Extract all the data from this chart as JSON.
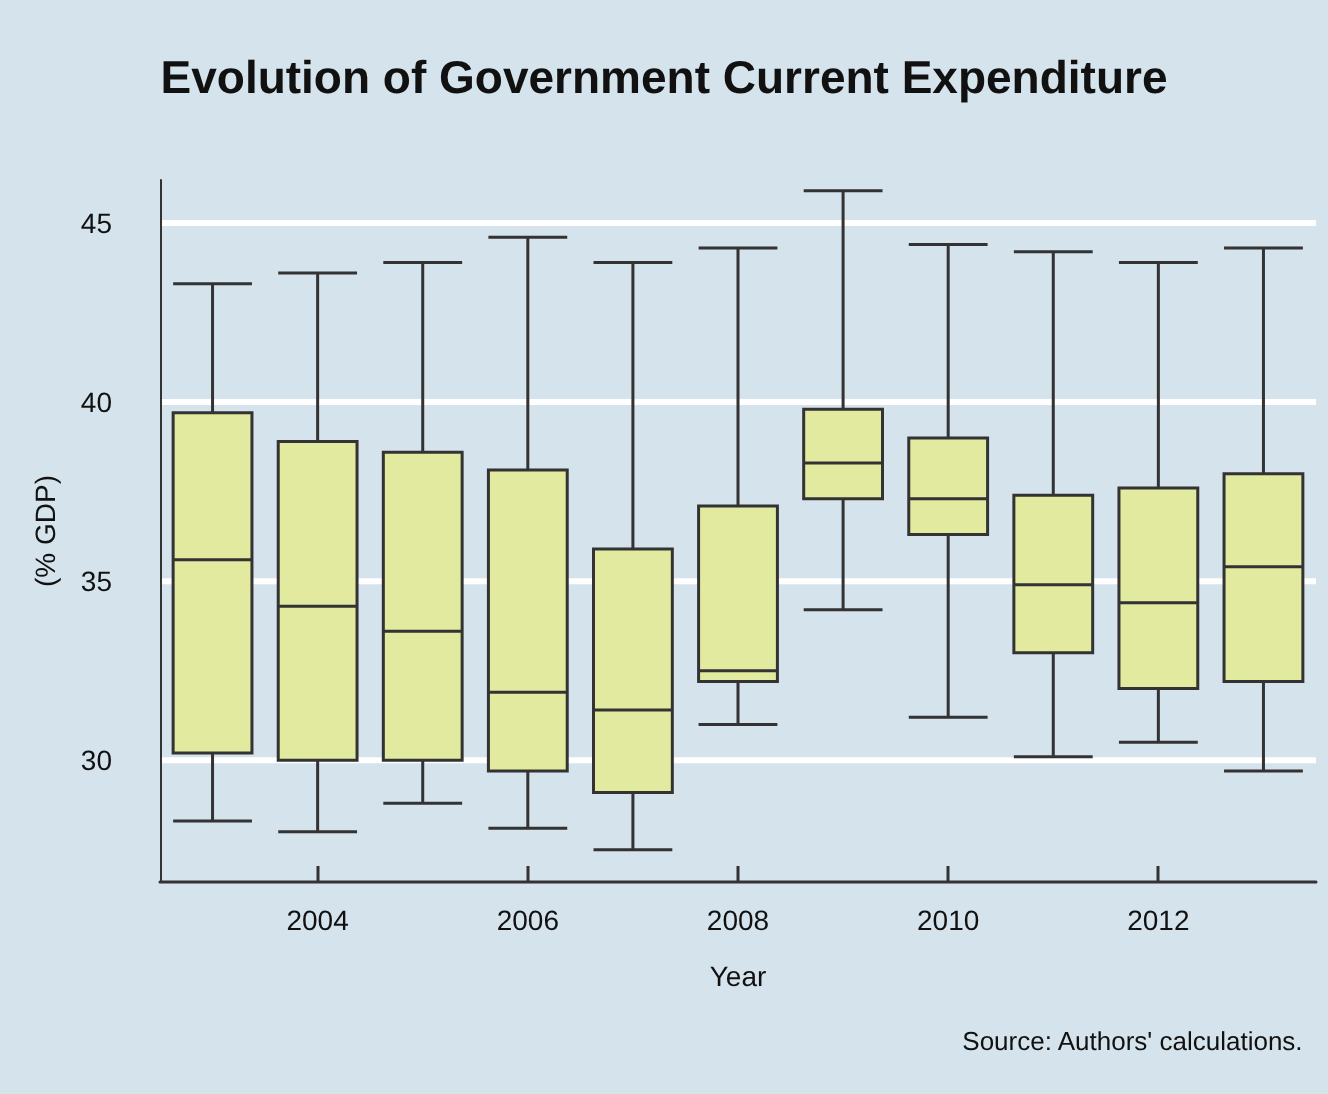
{
  "chart_data": {
    "type": "box",
    "title": "Evolution of Government Current Expenditure",
    "xlabel": "Year",
    "ylabel": "(% GDP)",
    "annotations": [
      "Source: Authors' calculations."
    ],
    "categories": [
      null,
      "2004",
      null,
      "2006",
      null,
      "2008",
      null,
      "2010",
      null,
      "2012",
      null
    ],
    "color": "#e2eaa0",
    "boxes": [
      {
        "low": 28.3,
        "q1": 30.2,
        "median": 35.6,
        "q3": 39.7,
        "high": 43.3
      },
      {
        "low": 28.0,
        "q1": 30.0,
        "median": 34.3,
        "q3": 38.9,
        "high": 43.6
      },
      {
        "low": 28.8,
        "q1": 30.0,
        "median": 33.6,
        "q3": 38.6,
        "high": 43.9
      },
      {
        "low": 28.1,
        "q1": 29.7,
        "median": 31.9,
        "q3": 38.1,
        "high": 44.6
      },
      {
        "low": 27.5,
        "q1": 29.1,
        "median": 31.4,
        "q3": 35.9,
        "high": 43.9
      },
      {
        "low": 31.0,
        "q1": 32.2,
        "median": 32.5,
        "q3": 37.1,
        "high": 44.3
      },
      {
        "low": 34.2,
        "q1": 37.3,
        "median": 38.3,
        "q3": 39.8,
        "high": 45.9
      },
      {
        "low": 31.2,
        "q1": 36.3,
        "median": 37.3,
        "q3": 39.0,
        "high": 44.4
      },
      {
        "low": 30.1,
        "q1": 33.0,
        "median": 34.9,
        "q3": 37.4,
        "high": 44.2
      },
      {
        "low": 30.5,
        "q1": 32.0,
        "median": 34.4,
        "q3": 37.6,
        "high": 43.9
      },
      {
        "low": 29.7,
        "q1": 32.2,
        "median": 35.4,
        "q3": 38.0,
        "high": 44.3
      }
    ],
    "ylim": [
      26.6,
      46.2
    ],
    "yticks": [
      30,
      35,
      40,
      45
    ],
    "grid": "y"
  }
}
